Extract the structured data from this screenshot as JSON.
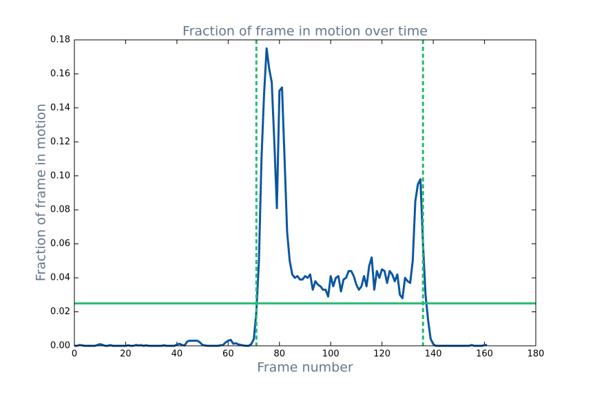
{
  "chart_data": {
    "type": "line",
    "title": "Fraction of frame in motion over time",
    "x_label": "Frame number",
    "y_label": "Fraction of frame in motion",
    "x": [
      0,
      1,
      2,
      3,
      4,
      5,
      6,
      7,
      8,
      9,
      10,
      11,
      12,
      13,
      14,
      15,
      16,
      17,
      18,
      19,
      20,
      21,
      22,
      23,
      24,
      25,
      26,
      27,
      28,
      29,
      30,
      31,
      32,
      33,
      34,
      35,
      36,
      37,
      38,
      39,
      40,
      41,
      42,
      43,
      44,
      45,
      46,
      47,
      48,
      49,
      50,
      51,
      52,
      53,
      54,
      55,
      56,
      57,
      58,
      59,
      60,
      61,
      62,
      63,
      64,
      65,
      66,
      67,
      68,
      69,
      70,
      71,
      72,
      73,
      74,
      75,
      76,
      77,
      78,
      79,
      80,
      81,
      82,
      83,
      84,
      85,
      86,
      87,
      88,
      89,
      90,
      91,
      92,
      93,
      94,
      95,
      96,
      97,
      98,
      99,
      100,
      101,
      102,
      103,
      104,
      105,
      106,
      107,
      108,
      109,
      110,
      111,
      112,
      113,
      114,
      115,
      116,
      117,
      118,
      119,
      120,
      121,
      122,
      123,
      124,
      125,
      126,
      127,
      128,
      129,
      130,
      131,
      132,
      133,
      134,
      135,
      136,
      137,
      138,
      139,
      140,
      141,
      142,
      143,
      144,
      145,
      146,
      147,
      148,
      149,
      150,
      151,
      152,
      153,
      154,
      155,
      156,
      157,
      158,
      159,
      160,
      161
    ],
    "series": [
      {
        "color": "#0a56a0",
        "values": [
          0,
          0,
          0.0005,
          0.0003,
          0,
          0,
          0,
          0,
          0,
          0.0005,
          0.001,
          0.0006,
          0,
          0,
          0.0004,
          0,
          0,
          0,
          0,
          0,
          0,
          0.0003,
          0,
          0,
          0.0005,
          0.0002,
          0.0004,
          0,
          0.0003,
          0,
          0,
          0,
          0,
          0,
          0,
          0.0003,
          0,
          0,
          0,
          0,
          0.0008,
          0.0012,
          0.0005,
          0.0002,
          0.0025,
          0.003,
          0.003,
          0.003,
          0.003,
          0.002,
          0.0005,
          0.0002,
          0,
          0,
          0,
          0,
          0,
          0.0003,
          0.0005,
          0.002,
          0.003,
          0.0035,
          0.0012,
          0.0015,
          0.0008,
          0.0005,
          0.0002,
          0,
          0,
          0.001,
          0.004,
          0.02,
          0.05,
          0.11,
          0.148,
          0.175,
          0.163,
          0.155,
          0.12,
          0.081,
          0.15,
          0.152,
          0.11,
          0.067,
          0.05,
          0.042,
          0.04,
          0.041,
          0.039,
          0.039,
          0.041,
          0.04,
          0.042,
          0.033,
          0.038,
          0.036,
          0.035,
          0.033,
          0.033,
          0.029,
          0.041,
          0.035,
          0.04,
          0.041,
          0.032,
          0.039,
          0.04,
          0.044,
          0.044,
          0.041,
          0.036,
          0.033,
          0.035,
          0.041,
          0.035,
          0.047,
          0.052,
          0.033,
          0.044,
          0.04,
          0.045,
          0.044,
          0.037,
          0.044,
          0.042,
          0.038,
          0.042,
          0.03,
          0.028,
          0.04,
          0.038,
          0.037,
          0.05,
          0.085,
          0.095,
          0.098,
          0.06,
          0.03,
          0.015,
          0.004,
          0.001,
          0,
          0,
          0,
          0,
          0,
          0,
          0,
          0,
          0,
          0,
          0,
          0,
          0,
          0,
          0.0005,
          0,
          0,
          0,
          0,
          0.0005,
          0.0004
        ]
      }
    ],
    "hlines": [
      {
        "y": 0.025,
        "color": "#22bb6e"
      }
    ],
    "vlines": [
      {
        "x": 71,
        "color": "#22bb6e"
      },
      {
        "x": 136,
        "color": "#22bb6e"
      }
    ],
    "xlim": [
      0,
      180
    ],
    "xticks": [
      0,
      20,
      40,
      60,
      80,
      100,
      120,
      140,
      160,
      180
    ],
    "ylim": [
      0,
      0.18
    ],
    "yticks": [
      {
        "value": 0,
        "label": "0.00"
      },
      {
        "value": 0.02,
        "label": "0.02"
      },
      {
        "value": 0.04,
        "label": "0.04"
      },
      {
        "value": 0.06,
        "label": "0.06"
      },
      {
        "value": 0.08,
        "label": "0.08"
      },
      {
        "value": 0.1,
        "label": "0.10"
      },
      {
        "value": 0.12,
        "label": "0.12"
      },
      {
        "value": 0.14,
        "label": "0.14"
      },
      {
        "value": 0.16,
        "label": "0.16"
      },
      {
        "value": 0.18,
        "label": "0.18"
      }
    ]
  }
}
